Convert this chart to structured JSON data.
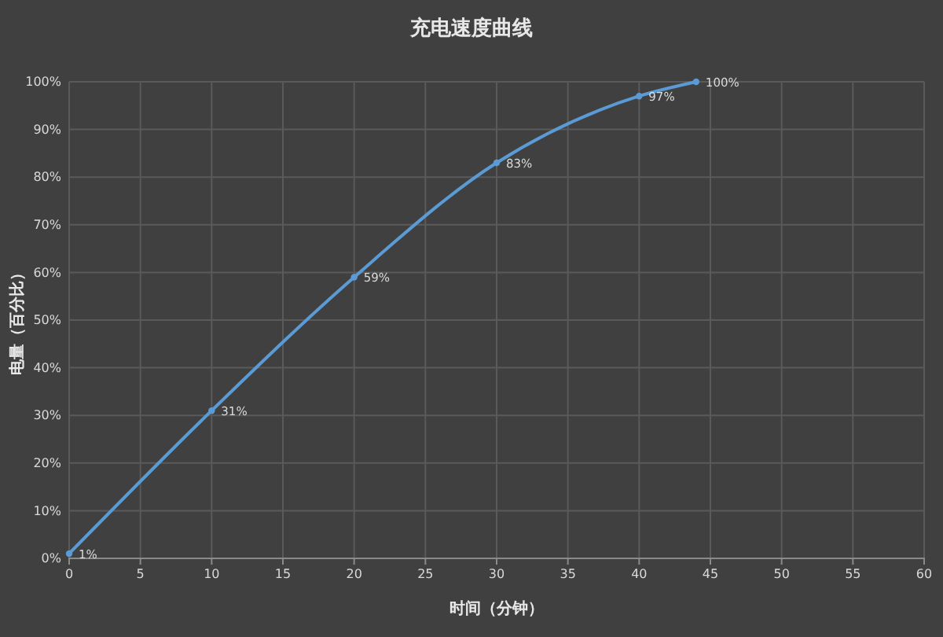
{
  "chart_data": {
    "type": "line",
    "title": "充电速度曲线",
    "xlabel": "时间（分钟）",
    "ylabel": "电量（百分比）",
    "x": [
      0,
      10,
      20,
      30,
      40,
      44
    ],
    "series": [
      {
        "color": "#5b9bd5",
        "values": [
          1,
          31,
          59,
          83,
          97,
          100
        ],
        "value_labels": [
          "1%",
          "31%",
          "59%",
          "83%",
          "97%",
          "100%"
        ]
      }
    ],
    "xlim": [
      0,
      60
    ],
    "xticks": [
      0,
      5,
      10,
      15,
      20,
      25,
      30,
      35,
      40,
      45,
      50,
      55,
      60
    ],
    "ylim": [
      0,
      100
    ],
    "yticks": [
      {
        "value": 0,
        "label": "0%"
      },
      {
        "value": 10,
        "label": "10%"
      },
      {
        "value": 20,
        "label": "20%"
      },
      {
        "value": 30,
        "label": "30%"
      },
      {
        "value": 40,
        "label": "40%"
      },
      {
        "value": 50,
        "label": "50%"
      },
      {
        "value": 60,
        "label": "60%"
      },
      {
        "value": 70,
        "label": "70%"
      },
      {
        "value": 80,
        "label": "80%"
      },
      {
        "value": 90,
        "label": "90%"
      },
      {
        "value": 100,
        "label": "100%"
      }
    ],
    "grid": true,
    "marker": "circle",
    "line_style": "solid"
  }
}
